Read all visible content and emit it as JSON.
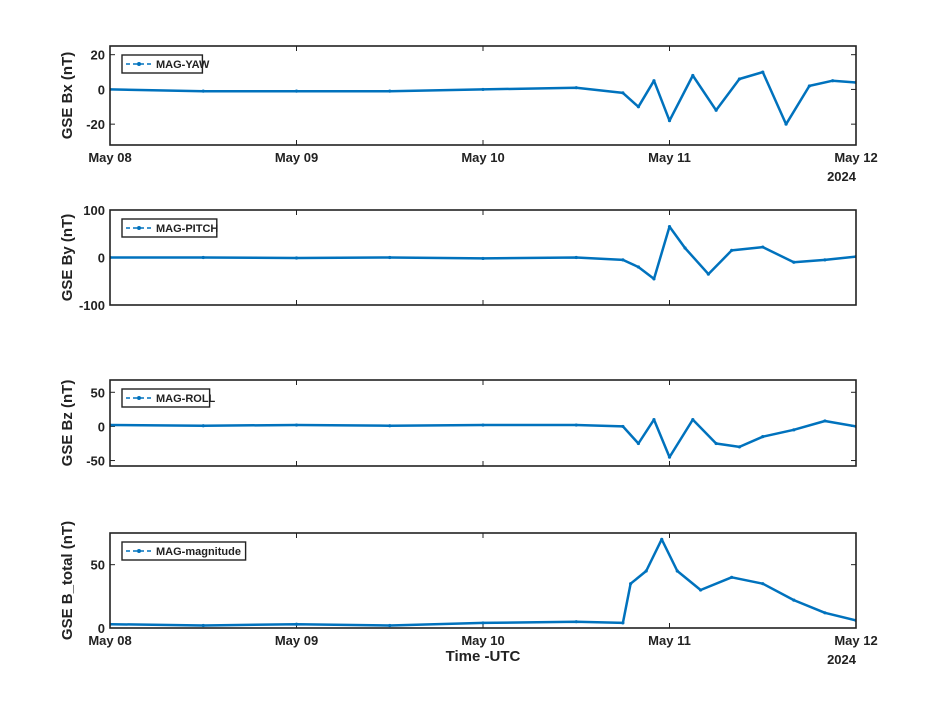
{
  "figure": {
    "xlabel": "Time -UTC",
    "x_ticks": [
      "May 08",
      "May 09",
      "May 10",
      "May 11",
      "May 12"
    ],
    "year_label": "2024",
    "line_color": "#0072BD"
  },
  "chart_data": [
    {
      "type": "line",
      "ylabel": "GSE Bx (nT)",
      "ylim": [
        -32,
        25
      ],
      "yticks": [
        -20,
        0,
        20
      ],
      "legend": "top-left",
      "series": [
        {
          "name": "MAG-YAW",
          "x": [
            "2024-05-08T00:00",
            "2024-05-08T12:00",
            "2024-05-09T00:00",
            "2024-05-09T12:00",
            "2024-05-10T00:00",
            "2024-05-10T12:00",
            "2024-05-10T18:00",
            "2024-05-10T20:00",
            "2024-05-10T22:00",
            "2024-05-11T00:00",
            "2024-05-11T03:00",
            "2024-05-11T06:00",
            "2024-05-11T09:00",
            "2024-05-11T12:00",
            "2024-05-11T15:00",
            "2024-05-11T18:00",
            "2024-05-11T21:00",
            "2024-05-12T00:00"
          ],
          "values": [
            0,
            -1,
            -1,
            -1,
            0,
            1,
            -2,
            -10,
            5,
            -18,
            8,
            -12,
            6,
            10,
            -20,
            2,
            5,
            4
          ]
        }
      ]
    },
    {
      "type": "line",
      "ylabel": "GSE By (nT)",
      "ylim": [
        -100,
        100
      ],
      "yticks": [
        -100,
        0,
        100
      ],
      "legend": "top-left",
      "series": [
        {
          "name": "MAG-PITCH",
          "x": [
            "2024-05-08T00:00",
            "2024-05-08T12:00",
            "2024-05-09T00:00",
            "2024-05-09T12:00",
            "2024-05-10T00:00",
            "2024-05-10T12:00",
            "2024-05-10T18:00",
            "2024-05-10T20:00",
            "2024-05-10T22:00",
            "2024-05-11T00:00",
            "2024-05-11T02:00",
            "2024-05-11T05:00",
            "2024-05-11T08:00",
            "2024-05-11T12:00",
            "2024-05-11T16:00",
            "2024-05-11T20:00",
            "2024-05-12T00:00"
          ],
          "values": [
            0,
            0,
            -1,
            0,
            -2,
            0,
            -5,
            -20,
            -45,
            65,
            20,
            -35,
            15,
            22,
            -10,
            -5,
            2
          ]
        }
      ]
    },
    {
      "type": "line",
      "ylabel": "GSE Bz (nT)",
      "ylim": [
        -58,
        68
      ],
      "yticks": [
        -50,
        0,
        50
      ],
      "legend": "top-left",
      "series": [
        {
          "name": "MAG-ROLL",
          "x": [
            "2024-05-08T00:00",
            "2024-05-08T12:00",
            "2024-05-09T00:00",
            "2024-05-09T12:00",
            "2024-05-10T00:00",
            "2024-05-10T12:00",
            "2024-05-10T18:00",
            "2024-05-10T20:00",
            "2024-05-10T22:00",
            "2024-05-11T00:00",
            "2024-05-11T03:00",
            "2024-05-11T06:00",
            "2024-05-11T09:00",
            "2024-05-11T12:00",
            "2024-05-11T16:00",
            "2024-05-11T20:00",
            "2024-05-12T00:00"
          ],
          "values": [
            2,
            1,
            2,
            1,
            2,
            2,
            0,
            -25,
            10,
            -45,
            10,
            -25,
            -30,
            -15,
            -5,
            8,
            0
          ]
        }
      ]
    },
    {
      "type": "line",
      "ylabel": "GSE B_total (nT)",
      "ylim": [
        0,
        75
      ],
      "yticks": [
        0,
        50
      ],
      "legend": "top-left",
      "series": [
        {
          "name": "MAG-magnitude",
          "x": [
            "2024-05-08T00:00",
            "2024-05-08T12:00",
            "2024-05-09T00:00",
            "2024-05-09T12:00",
            "2024-05-10T00:00",
            "2024-05-10T12:00",
            "2024-05-10T18:00",
            "2024-05-10T19:00",
            "2024-05-10T21:00",
            "2024-05-10T23:00",
            "2024-05-11T01:00",
            "2024-05-11T04:00",
            "2024-05-11T08:00",
            "2024-05-11T12:00",
            "2024-05-11T16:00",
            "2024-05-11T20:00",
            "2024-05-12T00:00"
          ],
          "values": [
            3,
            2,
            3,
            2,
            4,
            5,
            4,
            35,
            45,
            70,
            45,
            30,
            40,
            35,
            22,
            12,
            6
          ]
        }
      ]
    }
  ]
}
